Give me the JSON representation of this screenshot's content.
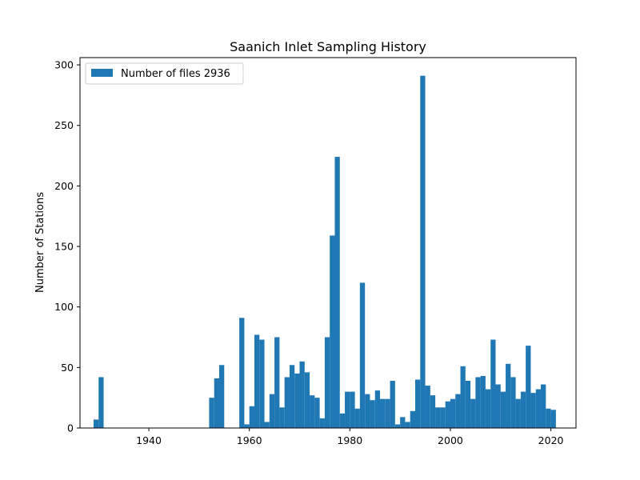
{
  "chart_data": {
    "type": "bar",
    "title": "Saanich Inlet Sampling History",
    "xlabel": "",
    "ylabel": "Number of Stations",
    "xlim": [
      1926.3,
      2025.0
    ],
    "ylim": [
      0,
      306
    ],
    "xticks": [
      1940,
      1960,
      1980,
      2000,
      2020
    ],
    "yticks": [
      0,
      50,
      100,
      150,
      200,
      250,
      300
    ],
    "bar_width": 1.0,
    "legend_position": "upper left",
    "series": [
      {
        "name": "Number of files 2936",
        "color": "#1f77b4",
        "x": [
          1929.5,
          1930.5,
          1952.5,
          1953.5,
          1954.5,
          1958.5,
          1959.5,
          1960.5,
          1961.5,
          1962.5,
          1963.5,
          1964.5,
          1965.5,
          1966.5,
          1967.5,
          1968.5,
          1969.5,
          1970.5,
          1971.5,
          1972.5,
          1973.5,
          1974.5,
          1975.5,
          1976.5,
          1977.5,
          1978.5,
          1979.5,
          1980.5,
          1981.5,
          1982.5,
          1983.5,
          1984.5,
          1985.5,
          1986.5,
          1987.5,
          1988.5,
          1989.5,
          1990.5,
          1991.5,
          1992.5,
          1993.5,
          1994.5,
          1995.5,
          1996.5,
          1997.5,
          1998.5,
          1999.5,
          2000.5,
          2001.5,
          2002.5,
          2003.5,
          2004.5,
          2005.5,
          2006.5,
          2007.5,
          2008.5,
          2009.5,
          2010.5,
          2011.5,
          2012.5,
          2013.5,
          2014.5,
          2015.5,
          2016.5,
          2017.5,
          2018.5,
          2019.5,
          2020.5
        ],
        "values": [
          7,
          42,
          25,
          41,
          52,
          91,
          3,
          18,
          77,
          73,
          5,
          28,
          75,
          17,
          42,
          52,
          45,
          55,
          46,
          27,
          25,
          8,
          75,
          159,
          224,
          12,
          30,
          30,
          16,
          120,
          28,
          23,
          31,
          24,
          24,
          39,
          3,
          9,
          5,
          14,
          40,
          291,
          35,
          27,
          17,
          17,
          22,
          24,
          28,
          51,
          39,
          24,
          42,
          43,
          32,
          73,
          36,
          30,
          53,
          42,
          24,
          30,
          68,
          29,
          32,
          36,
          16,
          15
        ]
      }
    ]
  }
}
